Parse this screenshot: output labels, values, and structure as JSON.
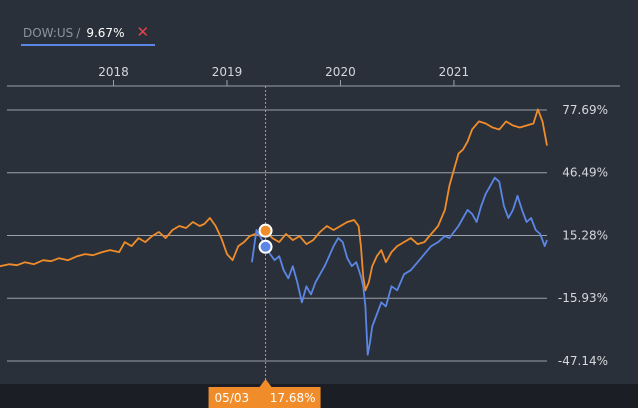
{
  "legend": {
    "symbol": "DOW:US",
    "separator": "/",
    "value": "9.67%",
    "close_glyph": "✕",
    "underline_color": "#5b86e5"
  },
  "colors": {
    "background": "#2a3039",
    "grid": "#9ba1a9",
    "dow_line": "#5b86e5",
    "benchmark_line": "#f08c2a",
    "crosshair": "#f08c2a",
    "tick_text": "#d4d7dc"
  },
  "crosshair": {
    "date_label": "05/03",
    "value_label": "17.68%",
    "x": 2019.34
  },
  "chart_data": {
    "type": "line",
    "title": "",
    "xlabel": "",
    "ylabel": "",
    "x_ticks": [
      2018,
      2019,
      2020,
      2021
    ],
    "x_tick_labels": [
      "2018",
      "2019",
      "2020",
      "2021"
    ],
    "y_ticks": [
      77.69,
      46.49,
      15.28,
      -15.93,
      -47.14
    ],
    "y_tick_labels": [
      "77.69%",
      "46.49%",
      "15.28%",
      "-15.93%",
      "-47.14%"
    ],
    "xlim": [
      2017.0,
      2021.82
    ],
    "ylim": [
      -47.14,
      77.69
    ],
    "grid": true,
    "legend_position": "top-left",
    "series": [
      {
        "color": "#f08c2a",
        "x": [
          2017.0,
          2017.08,
          2017.15,
          2017.22,
          2017.3,
          2017.38,
          2017.45,
          2017.52,
          2017.6,
          2017.68,
          2017.75,
          2017.82,
          2017.9,
          2017.97,
          2018.05,
          2018.1,
          2018.16,
          2018.22,
          2018.28,
          2018.34,
          2018.4,
          2018.46,
          2018.52,
          2018.58,
          2018.64,
          2018.7,
          2018.76,
          2018.8,
          2018.85,
          2018.9,
          2018.95,
          2019.0,
          2019.05,
          2019.1,
          2019.15,
          2019.2,
          2019.25,
          2019.3,
          2019.34,
          2019.4,
          2019.46,
          2019.52,
          2019.58,
          2019.64,
          2019.7,
          2019.76,
          2019.82,
          2019.88,
          2019.94,
          2020.0,
          2020.06,
          2020.12,
          2020.16,
          2020.18,
          2020.2,
          2020.22,
          2020.25,
          2020.28,
          2020.32,
          2020.36,
          2020.4,
          2020.45,
          2020.5,
          2020.56,
          2020.62,
          2020.68,
          2020.74,
          2020.8,
          2020.86,
          2020.92,
          2020.96,
          2021.0,
          2021.04,
          2021.08,
          2021.12,
          2021.16,
          2021.22,
          2021.28,
          2021.34,
          2021.4,
          2021.46,
          2021.52,
          2021.58,
          2021.64,
          2021.7,
          2021.74,
          2021.78,
          2021.82
        ],
        "values": [
          0,
          1,
          0.5,
          2,
          1,
          3,
          2.5,
          4,
          3,
          5,
          6,
          5.5,
          7,
          8,
          7,
          12,
          10,
          14,
          12,
          15,
          17,
          14,
          18,
          20,
          19,
          22,
          20,
          21,
          24,
          20,
          14,
          6,
          3,
          10,
          12,
          15,
          16,
          15,
          17.68,
          14,
          12,
          16,
          13,
          15,
          11,
          13,
          17,
          20,
          18,
          20,
          22,
          23,
          20,
          10,
          -5,
          -12,
          -8,
          0,
          5,
          8,
          2,
          7,
          10,
          12,
          14,
          11,
          12,
          16,
          20,
          28,
          40,
          48,
          56,
          58,
          62,
          68,
          72,
          71,
          69,
          68,
          72,
          70,
          69,
          70,
          71,
          78,
          72,
          60
        ]
      },
      {
        "color": "#5b86e5",
        "x": [
          2019.22,
          2019.26,
          2019.3,
          2019.34,
          2019.38,
          2019.42,
          2019.46,
          2019.5,
          2019.54,
          2019.58,
          2019.62,
          2019.66,
          2019.7,
          2019.74,
          2019.78,
          2019.82,
          2019.86,
          2019.9,
          2019.94,
          2019.98,
          2020.02,
          2020.06,
          2020.1,
          2020.14,
          2020.18,
          2020.2,
          2020.22,
          2020.24,
          2020.26,
          2020.28,
          2020.32,
          2020.36,
          2020.4,
          2020.45,
          2020.5,
          2020.56,
          2020.62,
          2020.68,
          2020.74,
          2020.8,
          2020.86,
          2020.92,
          2020.96,
          2021.0,
          2021.04,
          2021.08,
          2021.12,
          2021.16,
          2021.2,
          2021.24,
          2021.28,
          2021.32,
          2021.36,
          2021.4,
          2021.44,
          2021.48,
          2021.52,
          2021.56,
          2021.6,
          2021.64,
          2021.68,
          2021.72,
          2021.76,
          2021.8,
          2021.82
        ],
        "values": [
          2,
          18,
          14,
          9.67,
          6,
          3,
          5,
          -2,
          -6,
          0,
          -8,
          -18,
          -10,
          -14,
          -8,
          -4,
          0,
          5,
          10,
          14,
          12,
          4,
          0,
          2,
          -5,
          -10,
          -20,
          -44,
          -38,
          -30,
          -24,
          -18,
          -20,
          -10,
          -12,
          -4,
          -2,
          2,
          6,
          10,
          12,
          15,
          14,
          17,
          20,
          24,
          28,
          26,
          22,
          30,
          36,
          40,
          44,
          42,
          30,
          24,
          28,
          35,
          28,
          22,
          24,
          18,
          16,
          10,
          13
        ]
      }
    ]
  }
}
